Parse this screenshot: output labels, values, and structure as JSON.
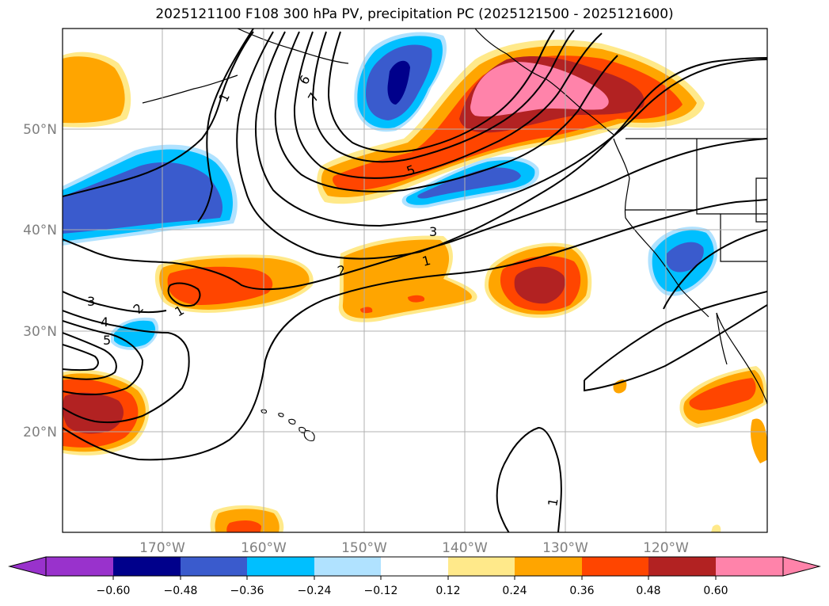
{
  "title": "2025121100 F108 300 hPa PV, precipitation PC (2025121500 - 2025121600)",
  "map": {
    "lat_labels": [
      "50°N",
      "40°N",
      "30°N",
      "20°N"
    ],
    "lon_labels": [
      "170°W",
      "160°W",
      "150°W",
      "140°W",
      "130°W",
      "120°W"
    ],
    "gridline_color": "#b0b0b0",
    "label_color": "#7f7f7f"
  },
  "pv_contour_labels": [
    "1",
    "6",
    "7",
    "5",
    "3",
    "1",
    "2",
    "3",
    "2",
    "4",
    "5",
    "1",
    "1"
  ],
  "colorbar": {
    "tick_labels": [
      "−0.60",
      "−0.48",
      "−0.36",
      "−0.24",
      "−0.12",
      "0.12",
      "0.24",
      "0.36",
      "0.48",
      "0.60"
    ],
    "colors": [
      "#9932cc",
      "#00008b",
      "#3a5bcd",
      "#00bfff",
      "#b0e2ff",
      "#ffffff",
      "#ffe98a",
      "#ffa500",
      "#ff4500",
      "#b22222",
      "#ff83aa"
    ]
  }
}
